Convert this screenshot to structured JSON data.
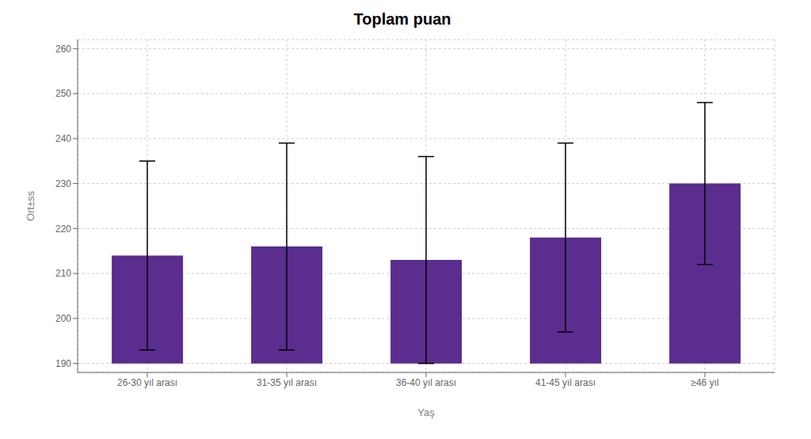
{
  "chart_data": {
    "type": "bar",
    "title": "Toplam puan",
    "xlabel": "Yaş",
    "ylabel": "Ort±ss",
    "categories": [
      "26-30 yıl arası",
      "31-35 yıl arası",
      "36-40 yıl arası",
      "41-45 yıl arası",
      "≥46 yıl"
    ],
    "values": [
      214,
      216,
      213,
      218,
      230
    ],
    "errors": [
      21,
      23,
      23,
      21,
      18
    ],
    "bar_base": 190,
    "color": "#5B2D8E",
    "ylim": [
      188,
      262
    ],
    "yticks": [
      190,
      200,
      210,
      220,
      230,
      240,
      250,
      260
    ],
    "grid": true
  }
}
